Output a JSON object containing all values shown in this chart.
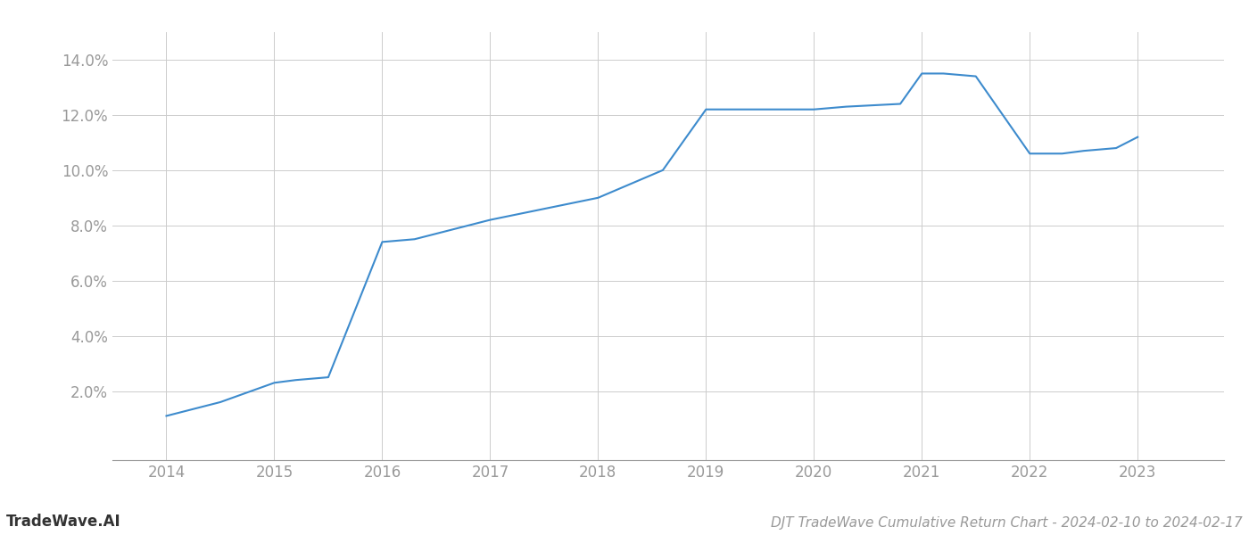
{
  "title": "DJT TradeWave Cumulative Return Chart - 2024-02-10 to 2024-02-17",
  "watermark": "TradeWave.AI",
  "x_values": [
    2014,
    2014.2,
    2014.5,
    2015.0,
    2015.2,
    2015.5,
    2016.0,
    2016.3,
    2016.8,
    2017.0,
    2017.5,
    2018.0,
    2018.3,
    2018.6,
    2019.0,
    2019.3,
    2019.8,
    2020.0,
    2020.3,
    2020.8,
    2021.0,
    2021.2,
    2021.5,
    2022.0,
    2022.3,
    2022.5,
    2022.8,
    2023.0
  ],
  "y_values": [
    1.1,
    1.3,
    1.6,
    2.3,
    2.4,
    2.5,
    7.4,
    7.5,
    8.0,
    8.2,
    8.6,
    9.0,
    9.5,
    10.0,
    12.2,
    12.2,
    12.2,
    12.2,
    12.3,
    12.4,
    13.5,
    13.5,
    13.4,
    10.6,
    10.6,
    10.7,
    10.8,
    11.2
  ],
  "line_color": "#3d8bcd",
  "line_width": 1.5,
  "background_color": "#ffffff",
  "grid_color": "#cccccc",
  "tick_color": "#999999",
  "ylim": [
    -0.5,
    15.0
  ],
  "xlim": [
    2013.5,
    2023.8
  ],
  "yticks": [
    2.0,
    4.0,
    6.0,
    8.0,
    10.0,
    12.0,
    14.0
  ],
  "xticks": [
    2014,
    2015,
    2016,
    2017,
    2018,
    2019,
    2020,
    2021,
    2022,
    2023
  ],
  "title_fontsize": 11,
  "watermark_fontsize": 12,
  "tick_fontsize": 12
}
